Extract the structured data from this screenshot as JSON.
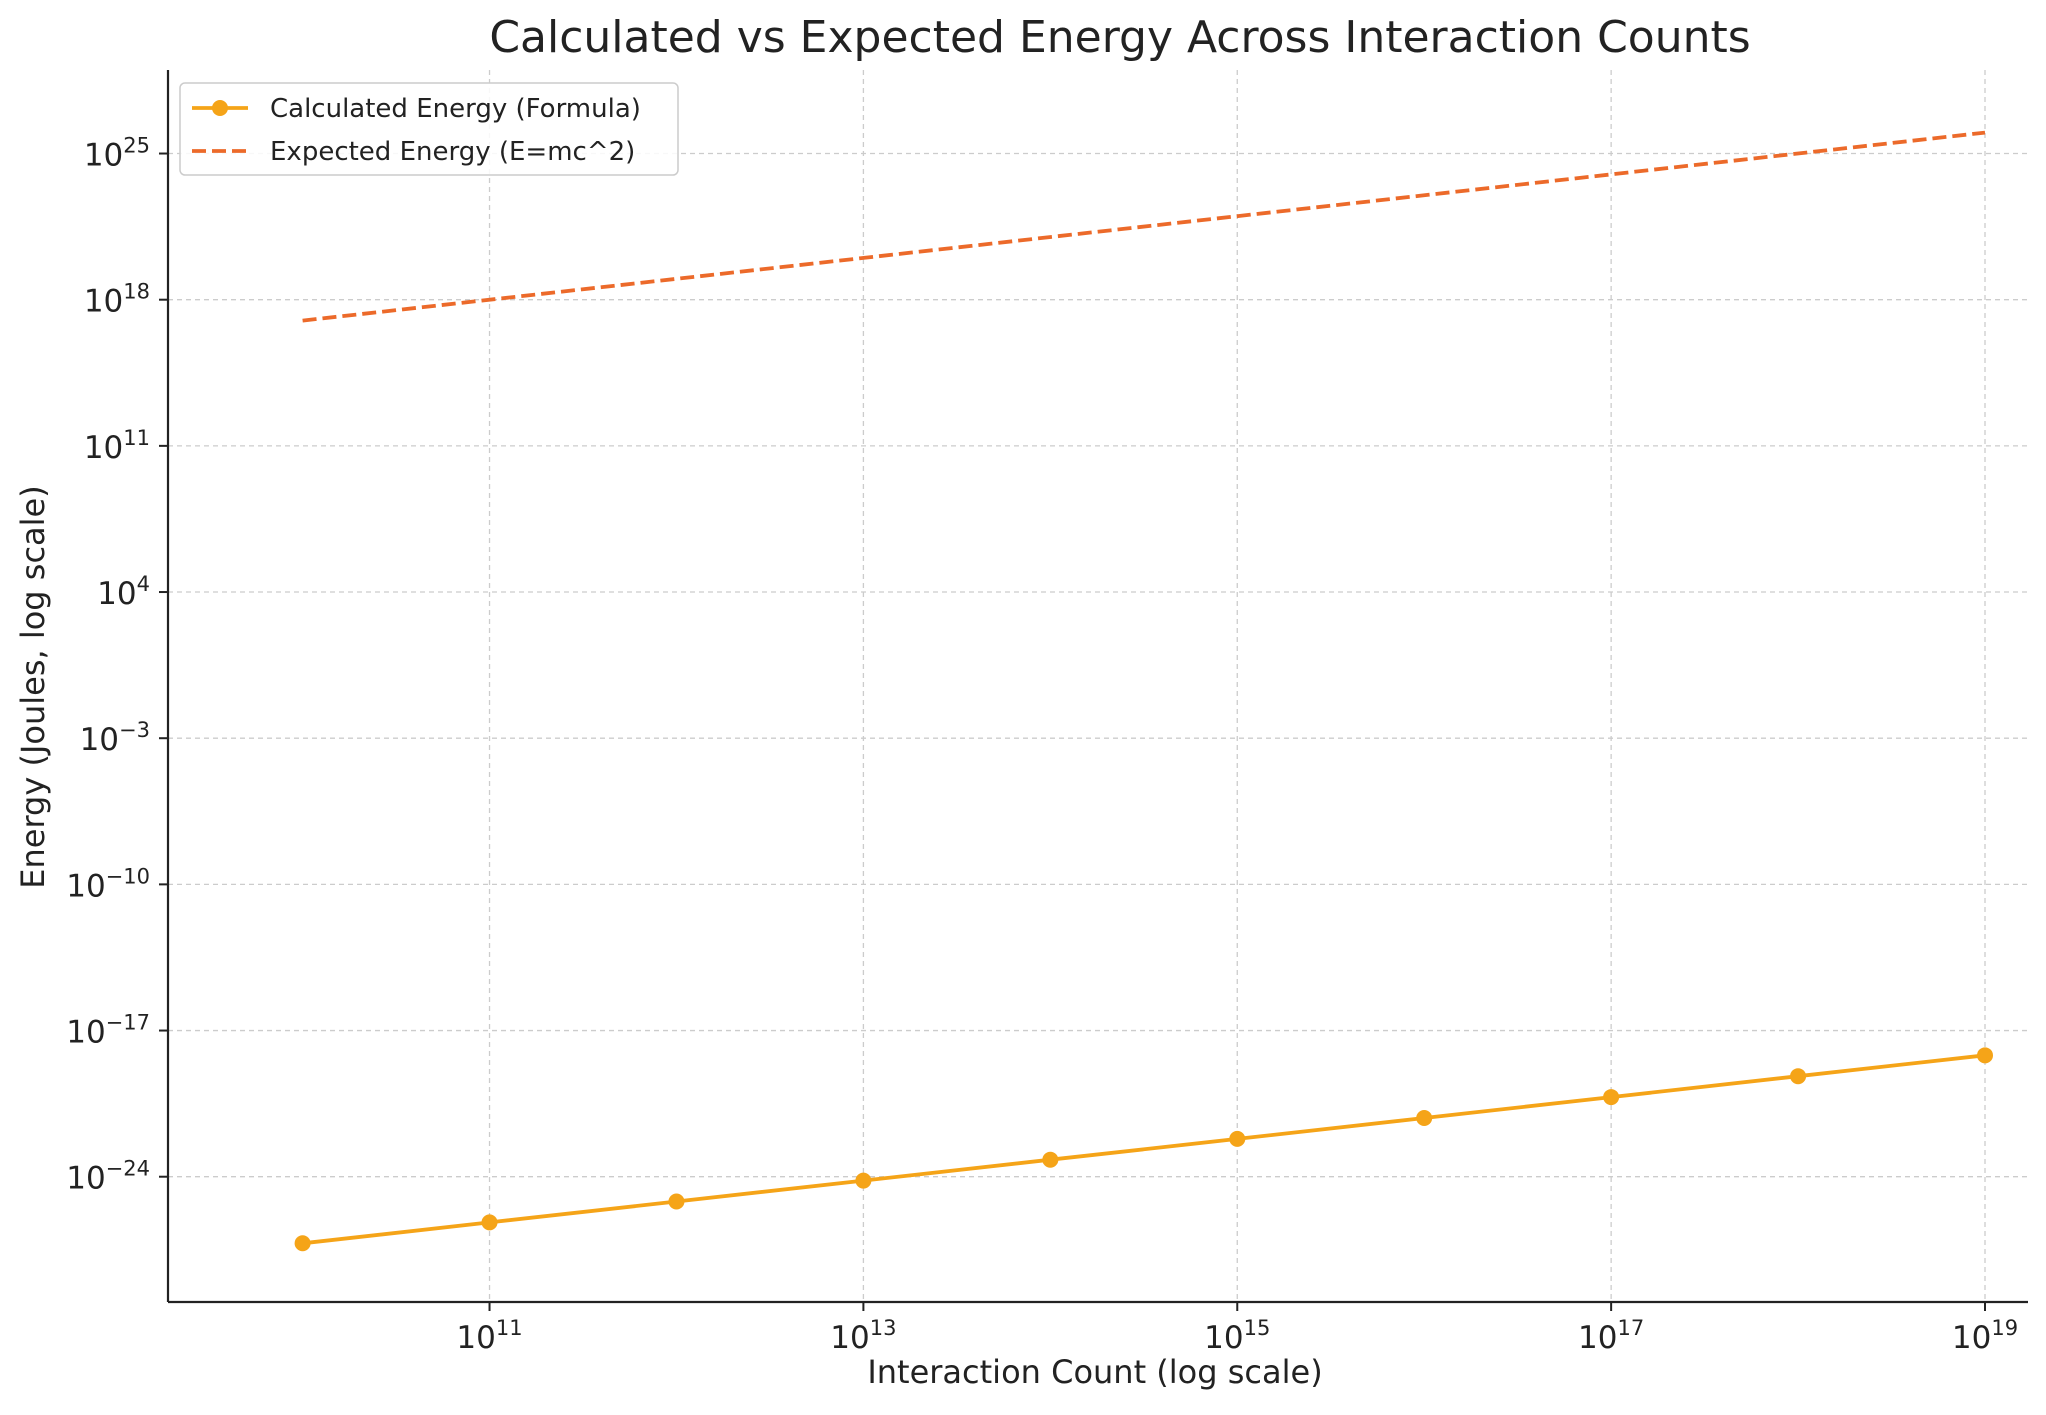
{
  "chart_data": {
    "type": "line",
    "title": "Calculated vs Expected Energy Across Interaction Counts",
    "xlabel": "Interaction Count (log scale)",
    "ylabel": "Energy (Joules, log scale)",
    "xscale": "log",
    "yscale": "log",
    "xlim": [
      10000000000.0,
      1e+19
    ],
    "ylim": [
      1e-30,
      1e+29
    ],
    "grid": true,
    "legend_position": "top-left",
    "x_ticks": [
      {
        "value": 100000000000.0,
        "base": "10",
        "exp": "11"
      },
      {
        "value": 10000000000000.0,
        "base": "10",
        "exp": "13"
      },
      {
        "value": 1000000000000000.0,
        "base": "10",
        "exp": "15"
      },
      {
        "value": 1e+17,
        "base": "10",
        "exp": "17"
      },
      {
        "value": 1e+19,
        "base": "10",
        "exp": "19"
      }
    ],
    "y_ticks": [
      {
        "value": 1e-24,
        "base": "10",
        "exp": "−24"
      },
      {
        "value": 1e-17,
        "base": "10",
        "exp": "−17"
      },
      {
        "value": 1e-10,
        "base": "10",
        "exp": "−10"
      },
      {
        "value": 0.001,
        "base": "10",
        "exp": "−3"
      },
      {
        "value": 10000.0,
        "base": "10",
        "exp": "4"
      },
      {
        "value": 100000000000.0,
        "base": "10",
        "exp": "11"
      },
      {
        "value": 1e+18,
        "base": "10",
        "exp": "18"
      },
      {
        "value": 1e+25,
        "base": "10",
        "exp": "25"
      }
    ],
    "series": [
      {
        "name": "Calculated Energy (Formula)",
        "color": "#f5a418",
        "style": "solid",
        "marker": "circle",
        "x": [
          10000000000.0,
          100000000000.0,
          1000000000000.0,
          10000000000000.0,
          100000000000000.0,
          1000000000000000.0,
          1e+16,
          1e+17,
          1e+18,
          1e+19
        ],
        "y": [
          6.5e-28,
          6.5e-27,
          6.5e-26,
          6.5e-25,
          6.5e-24,
          6.5e-23,
          6.5e-22,
          6.5e-21,
          6.5e-20,
          6.5e-19
        ]
      },
      {
        "name": "Expected Energy (E=mc^2)",
        "color": "#ec6a2a",
        "style": "dashed",
        "marker": "none",
        "x": [
          10000000000.0,
          1e+19
        ],
        "y": [
          1e+17,
          1e+26
        ]
      }
    ]
  }
}
